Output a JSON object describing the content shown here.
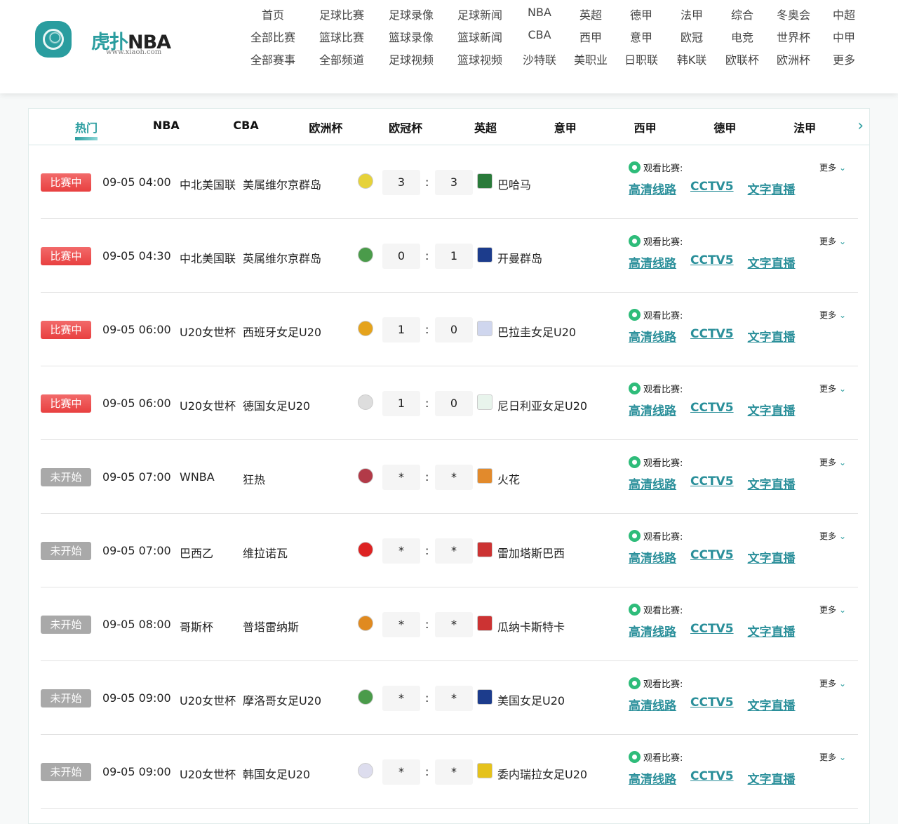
{
  "header": {
    "logo_cn": "虎扑",
    "logo_en": "NBA",
    "logo_sub": "www.xiaoh.com",
    "nav": [
      [
        "首页",
        "足球比赛",
        "足球录像",
        "足球新闻",
        "NBA",
        "英超",
        "德甲",
        "法甲",
        "综合",
        "冬奥会",
        "中超"
      ],
      [
        "全部比赛",
        "篮球比赛",
        "篮球录像",
        "篮球新闻",
        "CBA",
        "西甲",
        "意甲",
        "欧冠",
        "电竞",
        "世界杯",
        "中甲"
      ],
      [
        "全部赛事",
        "全部频道",
        "足球视频",
        "篮球视频",
        "沙特联",
        "美职业",
        "日职联",
        "韩K联",
        "欧联杯",
        "欧洲杯",
        "更多"
      ]
    ]
  },
  "tabs": [
    "热门",
    "NBA",
    "CBA",
    "欧洲杯",
    "欧冠杯",
    "英超",
    "意甲",
    "西甲",
    "德甲",
    "法甲"
  ],
  "colors": {
    "accent": "#2a9d9f",
    "live": "#e84040",
    "pending": "#a9a9a9",
    "link": "#2a8f9a"
  },
  "watch_label": "观看比赛:",
  "more_label": "更多",
  "links": [
    "高清线路",
    "CCTV5",
    "文字直播"
  ],
  "matches": [
    {
      "status": "比赛中",
      "type": "live",
      "time": "09-05 04:00",
      "league": "中北美国联",
      "home": "美属维尔京群岛",
      "home_score": "3",
      "away_score": "3",
      "away": "巴哈马",
      "hc": "#e6d23a",
      "ac": "#2a7a3a"
    },
    {
      "status": "比赛中",
      "type": "live",
      "time": "09-05 04:30",
      "league": "中北美国联",
      "home": "英属维尔京群岛",
      "home_score": "0",
      "away_score": "1",
      "away": "开曼群岛",
      "hc": "#4a9b4a",
      "ac": "#1c3c8c"
    },
    {
      "status": "比赛中",
      "type": "live",
      "time": "09-05 06:00",
      "league": "U20女世杯",
      "home": "西班牙女足U20",
      "home_score": "1",
      "away_score": "0",
      "away": "巴拉圭女足U20",
      "hc": "#e5a31c",
      "ac": "#cfd6ee"
    },
    {
      "status": "比赛中",
      "type": "live",
      "time": "09-05 06:00",
      "league": "U20女世杯",
      "home": "德国女足U20",
      "home_score": "1",
      "away_score": "0",
      "away": "尼日利亚女足U20",
      "hc": "#ddd",
      "ac": "#e8f4ec"
    },
    {
      "status": "未开始",
      "type": "pending",
      "time": "09-05 07:00",
      "league": "WNBA",
      "home": "狂热",
      "home_score": "*",
      "away_score": "*",
      "away": "火花",
      "hc": "#b23a48",
      "ac": "#e28a2c"
    },
    {
      "status": "未开始",
      "type": "pending",
      "time": "09-05 07:00",
      "league": "巴西乙",
      "home": "维拉诺瓦",
      "home_score": "*",
      "away_score": "*",
      "away": "雷加塔斯巴西",
      "hc": "#d22",
      "ac": "#c33"
    },
    {
      "status": "未开始",
      "type": "pending",
      "time": "09-05 08:00",
      "league": "哥斯杯",
      "home": "普塔雷纳斯",
      "home_score": "*",
      "away_score": "*",
      "away": "瓜纳卡斯特卡",
      "hc": "#e08a20",
      "ac": "#c33"
    },
    {
      "status": "未开始",
      "type": "pending",
      "time": "09-05 09:00",
      "league": "U20女世杯",
      "home": "摩洛哥女足U20",
      "home_score": "*",
      "away_score": "*",
      "away": "美国女足U20",
      "hc": "#4a9b4a",
      "ac": "#1c3c8c"
    },
    {
      "status": "未开始",
      "type": "pending",
      "time": "09-05 09:00",
      "league": "U20女世杯",
      "home": "韩国女足U20",
      "home_score": "*",
      "away_score": "*",
      "away": "委内瑞拉女足U20",
      "hc": "#dde",
      "ac": "#e5c21c"
    }
  ]
}
